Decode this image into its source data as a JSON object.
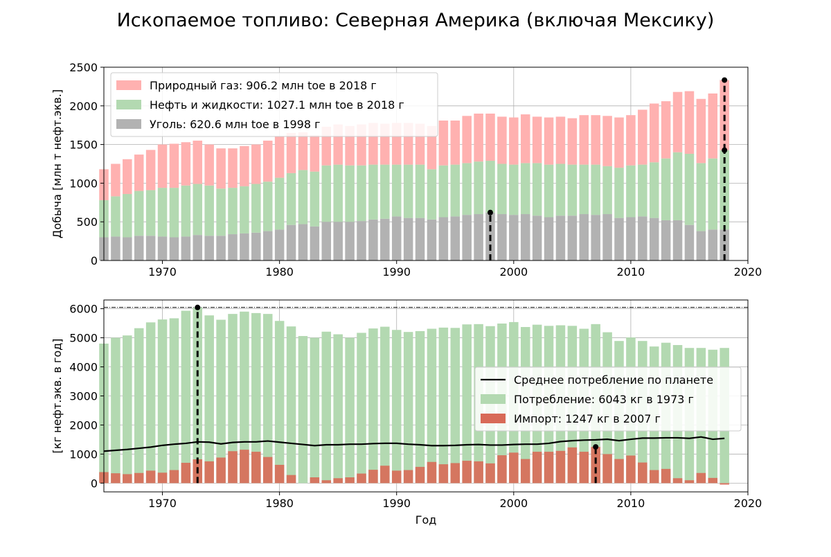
{
  "title": "Ископаемое топливо: Северная Америка (включая Мексику)",
  "chart_data": [
    {
      "type": "bar",
      "stacked": true,
      "title": "",
      "xlabel": "",
      "ylabel": "Добыча [млн т нефт.экв.]",
      "xlim": [
        1965,
        2020
      ],
      "ylim": [
        0,
        2500
      ],
      "x_ticks": [
        1970,
        1980,
        1990,
        2000,
        2010,
        2020
      ],
      "y_ticks": [
        0,
        500,
        1000,
        1500,
        2000,
        2500
      ],
      "grid": true,
      "legend_position": "top-left",
      "years": [
        1965,
        1966,
        1967,
        1968,
        1969,
        1970,
        1971,
        1972,
        1973,
        1974,
        1975,
        1976,
        1977,
        1978,
        1979,
        1980,
        1981,
        1982,
        1983,
        1984,
        1985,
        1986,
        1987,
        1988,
        1989,
        1990,
        1991,
        1992,
        1993,
        1994,
        1995,
        1996,
        1997,
        1998,
        1999,
        2000,
        2001,
        2002,
        2003,
        2004,
        2005,
        2006,
        2007,
        2008,
        2009,
        2010,
        2011,
        2012,
        2013,
        2014,
        2015,
        2016,
        2017,
        2018
      ],
      "series": [
        {
          "name": "Уголь: 620.6 млн toe в 1998 г",
          "color": "#b2b2b2",
          "values": [
            300,
            310,
            300,
            320,
            320,
            310,
            300,
            310,
            330,
            320,
            320,
            340,
            350,
            360,
            380,
            400,
            460,
            470,
            440,
            500,
            500,
            500,
            510,
            530,
            540,
            570,
            550,
            550,
            530,
            560,
            570,
            590,
            600,
            620,
            600,
            590,
            600,
            580,
            560,
            580,
            580,
            600,
            590,
            600,
            550,
            560,
            570,
            550,
            520,
            520,
            460,
            380,
            400,
            400
          ]
        },
        {
          "name": "Нефть и жидкости: 1027.1 млн toe в 2018 г",
          "color": "#b3d9b1",
          "values": [
            480,
            520,
            560,
            580,
            590,
            630,
            640,
            660,
            660,
            650,
            610,
            600,
            610,
            630,
            640,
            670,
            670,
            700,
            710,
            730,
            740,
            730,
            720,
            710,
            700,
            670,
            690,
            690,
            650,
            670,
            670,
            670,
            680,
            670,
            650,
            650,
            660,
            680,
            680,
            670,
            660,
            640,
            650,
            620,
            650,
            670,
            670,
            720,
            800,
            880,
            920,
            880,
            920,
            1027
          ]
        },
        {
          "name": "Природный газ: 906.2 млн toe в 2018 г",
          "color": "#ffb1b0",
          "values": [
            400,
            420,
            450,
            470,
            520,
            560,
            570,
            560,
            560,
            530,
            520,
            510,
            520,
            510,
            530,
            540,
            520,
            490,
            470,
            500,
            520,
            510,
            530,
            540,
            530,
            540,
            540,
            530,
            560,
            580,
            570,
            610,
            620,
            610,
            610,
            610,
            630,
            600,
            610,
            610,
            600,
            640,
            640,
            650,
            650,
            650,
            710,
            760,
            740,
            780,
            810,
            830,
            840,
            906
          ]
        }
      ],
      "markers": [
        {
          "x": 1998,
          "y_from": 0,
          "y_to": 620.6
        },
        {
          "x": 2018,
          "y_from": 1427.1,
          "y_to": 2333.3
        },
        {
          "x": 2018,
          "y_from": 0,
          "y_to": 1427.1
        }
      ]
    },
    {
      "type": "bar",
      "title": "",
      "xlabel": "Год",
      "ylabel": "[кг нефт.экв. в год]",
      "xlim": [
        1965,
        2020
      ],
      "ylim": [
        -300,
        6300
      ],
      "x_ticks": [
        1970,
        1980,
        1990,
        2000,
        2010,
        2020
      ],
      "y_ticks": [
        0,
        1000,
        2000,
        3000,
        4000,
        5000,
        6000
      ],
      "grid": true,
      "legend_position": "center-right",
      "reference_line": 6043,
      "years": [
        1965,
        1966,
        1967,
        1968,
        1969,
        1970,
        1971,
        1972,
        1973,
        1974,
        1975,
        1976,
        1977,
        1978,
        1979,
        1980,
        1981,
        1982,
        1983,
        1984,
        1985,
        1986,
        1987,
        1988,
        1989,
        1990,
        1991,
        1992,
        1993,
        1994,
        1995,
        1996,
        1997,
        1998,
        1999,
        2000,
        2001,
        2002,
        2003,
        2004,
        2005,
        2006,
        2007,
        2008,
        2009,
        2010,
        2011,
        2012,
        2013,
        2014,
        2015,
        2016,
        2017,
        2018
      ],
      "series": [
        {
          "name": "Потребление: 6043 кг в 1973 г",
          "color": "#b3d9b1",
          "values": [
            4800,
            5000,
            5080,
            5330,
            5530,
            5630,
            5670,
            5930,
            6043,
            5770,
            5620,
            5820,
            5900,
            5850,
            5820,
            5580,
            5390,
            5060,
            5000,
            5210,
            5120,
            5000,
            5170,
            5320,
            5380,
            5270,
            5200,
            5230,
            5310,
            5350,
            5340,
            5460,
            5470,
            5400,
            5490,
            5540,
            5370,
            5450,
            5410,
            5430,
            5410,
            5310,
            5470,
            5190,
            4890,
            5010,
            4890,
            4700,
            4830,
            4750,
            4650,
            4650,
            4590,
            4650
          ]
        },
        {
          "name": "Импорт: 1247 кг в 2007 г",
          "color": "#d86a58",
          "values": [
            380,
            340,
            310,
            350,
            430,
            360,
            450,
            700,
            820,
            750,
            880,
            1100,
            1150,
            1080,
            900,
            630,
            280,
            0,
            200,
            100,
            170,
            200,
            330,
            460,
            600,
            430,
            450,
            560,
            730,
            650,
            690,
            770,
            750,
            680,
            960,
            1050,
            830,
            1080,
            1080,
            1110,
            1230,
            1080,
            1247,
            1000,
            830,
            950,
            710,
            450,
            490,
            170,
            100,
            350,
            180,
            -50
          ]
        },
        {
          "name": "Среднее потребление по планете",
          "type": "line",
          "color": "#000000",
          "values": [
            1100,
            1130,
            1160,
            1200,
            1240,
            1300,
            1340,
            1370,
            1420,
            1410,
            1350,
            1400,
            1420,
            1420,
            1450,
            1410,
            1370,
            1330,
            1290,
            1320,
            1320,
            1340,
            1340,
            1360,
            1370,
            1370,
            1340,
            1320,
            1290,
            1290,
            1300,
            1320,
            1330,
            1310,
            1310,
            1330,
            1340,
            1340,
            1370,
            1430,
            1460,
            1480,
            1490,
            1510,
            1460,
            1510,
            1550,
            1550,
            1560,
            1560,
            1540,
            1590,
            1510,
            1540
          ]
        }
      ],
      "markers": [
        {
          "x": 1973,
          "y_from": 0,
          "y_to": 6043
        },
        {
          "x": 2007,
          "y_from": 0,
          "y_to": 1247
        }
      ]
    }
  ]
}
